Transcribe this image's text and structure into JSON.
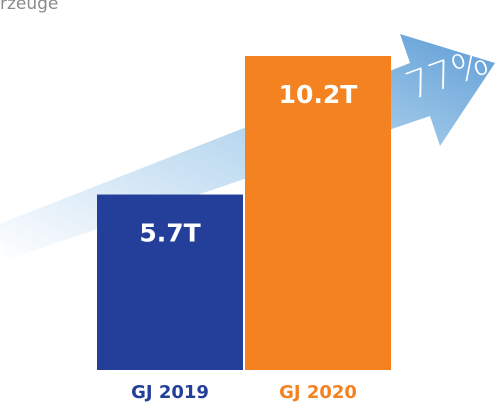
{
  "chart_data": {
    "type": "bar",
    "title": "rzeuge",
    "categories": [
      "GJ 2019",
      "GJ 2020"
    ],
    "values": [
      5.7,
      10.2
    ],
    "value_labels": [
      "5.7T",
      "10.2T"
    ],
    "colors": [
      "#233f99",
      "#f58220"
    ],
    "annotation": "77%"
  }
}
